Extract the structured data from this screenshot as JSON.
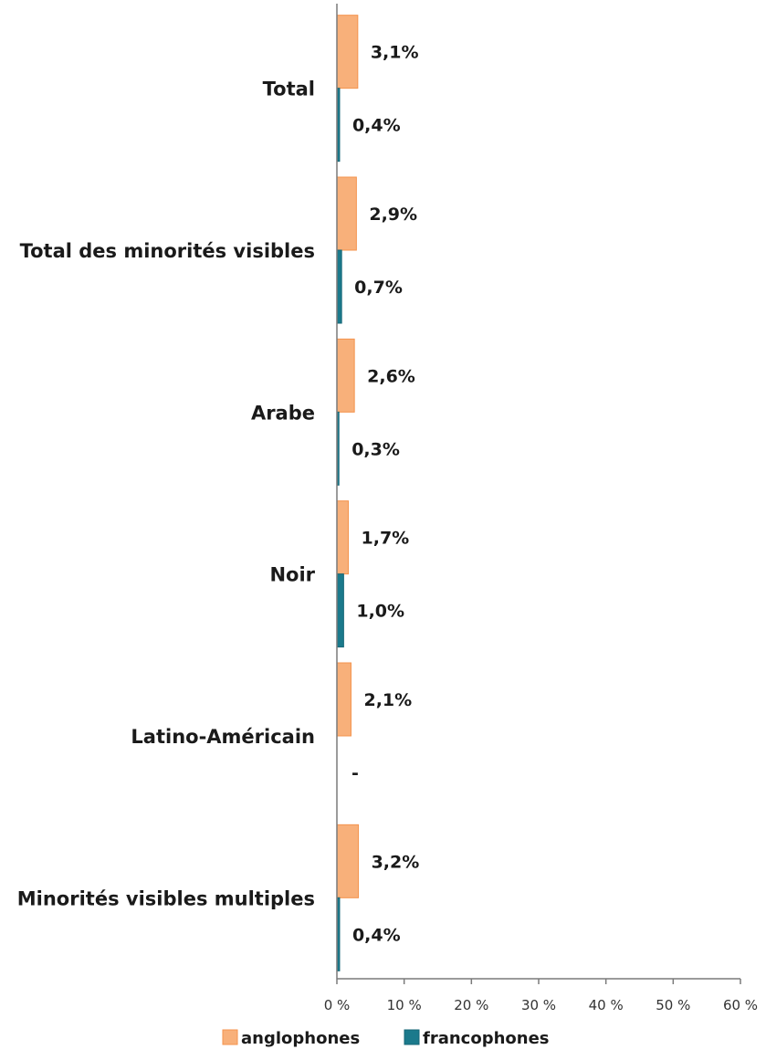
{
  "chart_data": {
    "type": "bar",
    "orientation": "horizontal",
    "categories": [
      "Total",
      "Total des minorités visibles",
      "Arabe",
      "Noir",
      "Latino-Américain",
      "Minorités visibles multiples"
    ],
    "series": [
      {
        "name": "anglophones",
        "color": "#f8b07a",
        "stroke": "#f4934d",
        "values": [
          3.1,
          2.9,
          2.6,
          1.7,
          2.1,
          3.2
        ],
        "labels": [
          "3,1%",
          "2,9%",
          "2,6%",
          "1,7%",
          "2,1%",
          "3,2%"
        ]
      },
      {
        "name": "francophones",
        "color": "#1b7a8c",
        "stroke": "#146676",
        "values": [
          0.4,
          0.7,
          0.3,
          1.0,
          0,
          0.4
        ],
        "labels": [
          "0,4%",
          "0,7%",
          "0,3%",
          "1,0%",
          "-",
          "0,4%"
        ]
      }
    ],
    "xlim": [
      0,
      60
    ],
    "xticks": [
      0,
      10,
      20,
      30,
      40,
      50,
      60
    ],
    "xtick_labels": [
      "0 %",
      "10 %",
      "20 %",
      "30 %",
      "40 %",
      "50 %",
      "60 %"
    ],
    "grid": false,
    "legend_position": "bottom",
    "title": "",
    "xlabel": "",
    "ylabel": ""
  }
}
